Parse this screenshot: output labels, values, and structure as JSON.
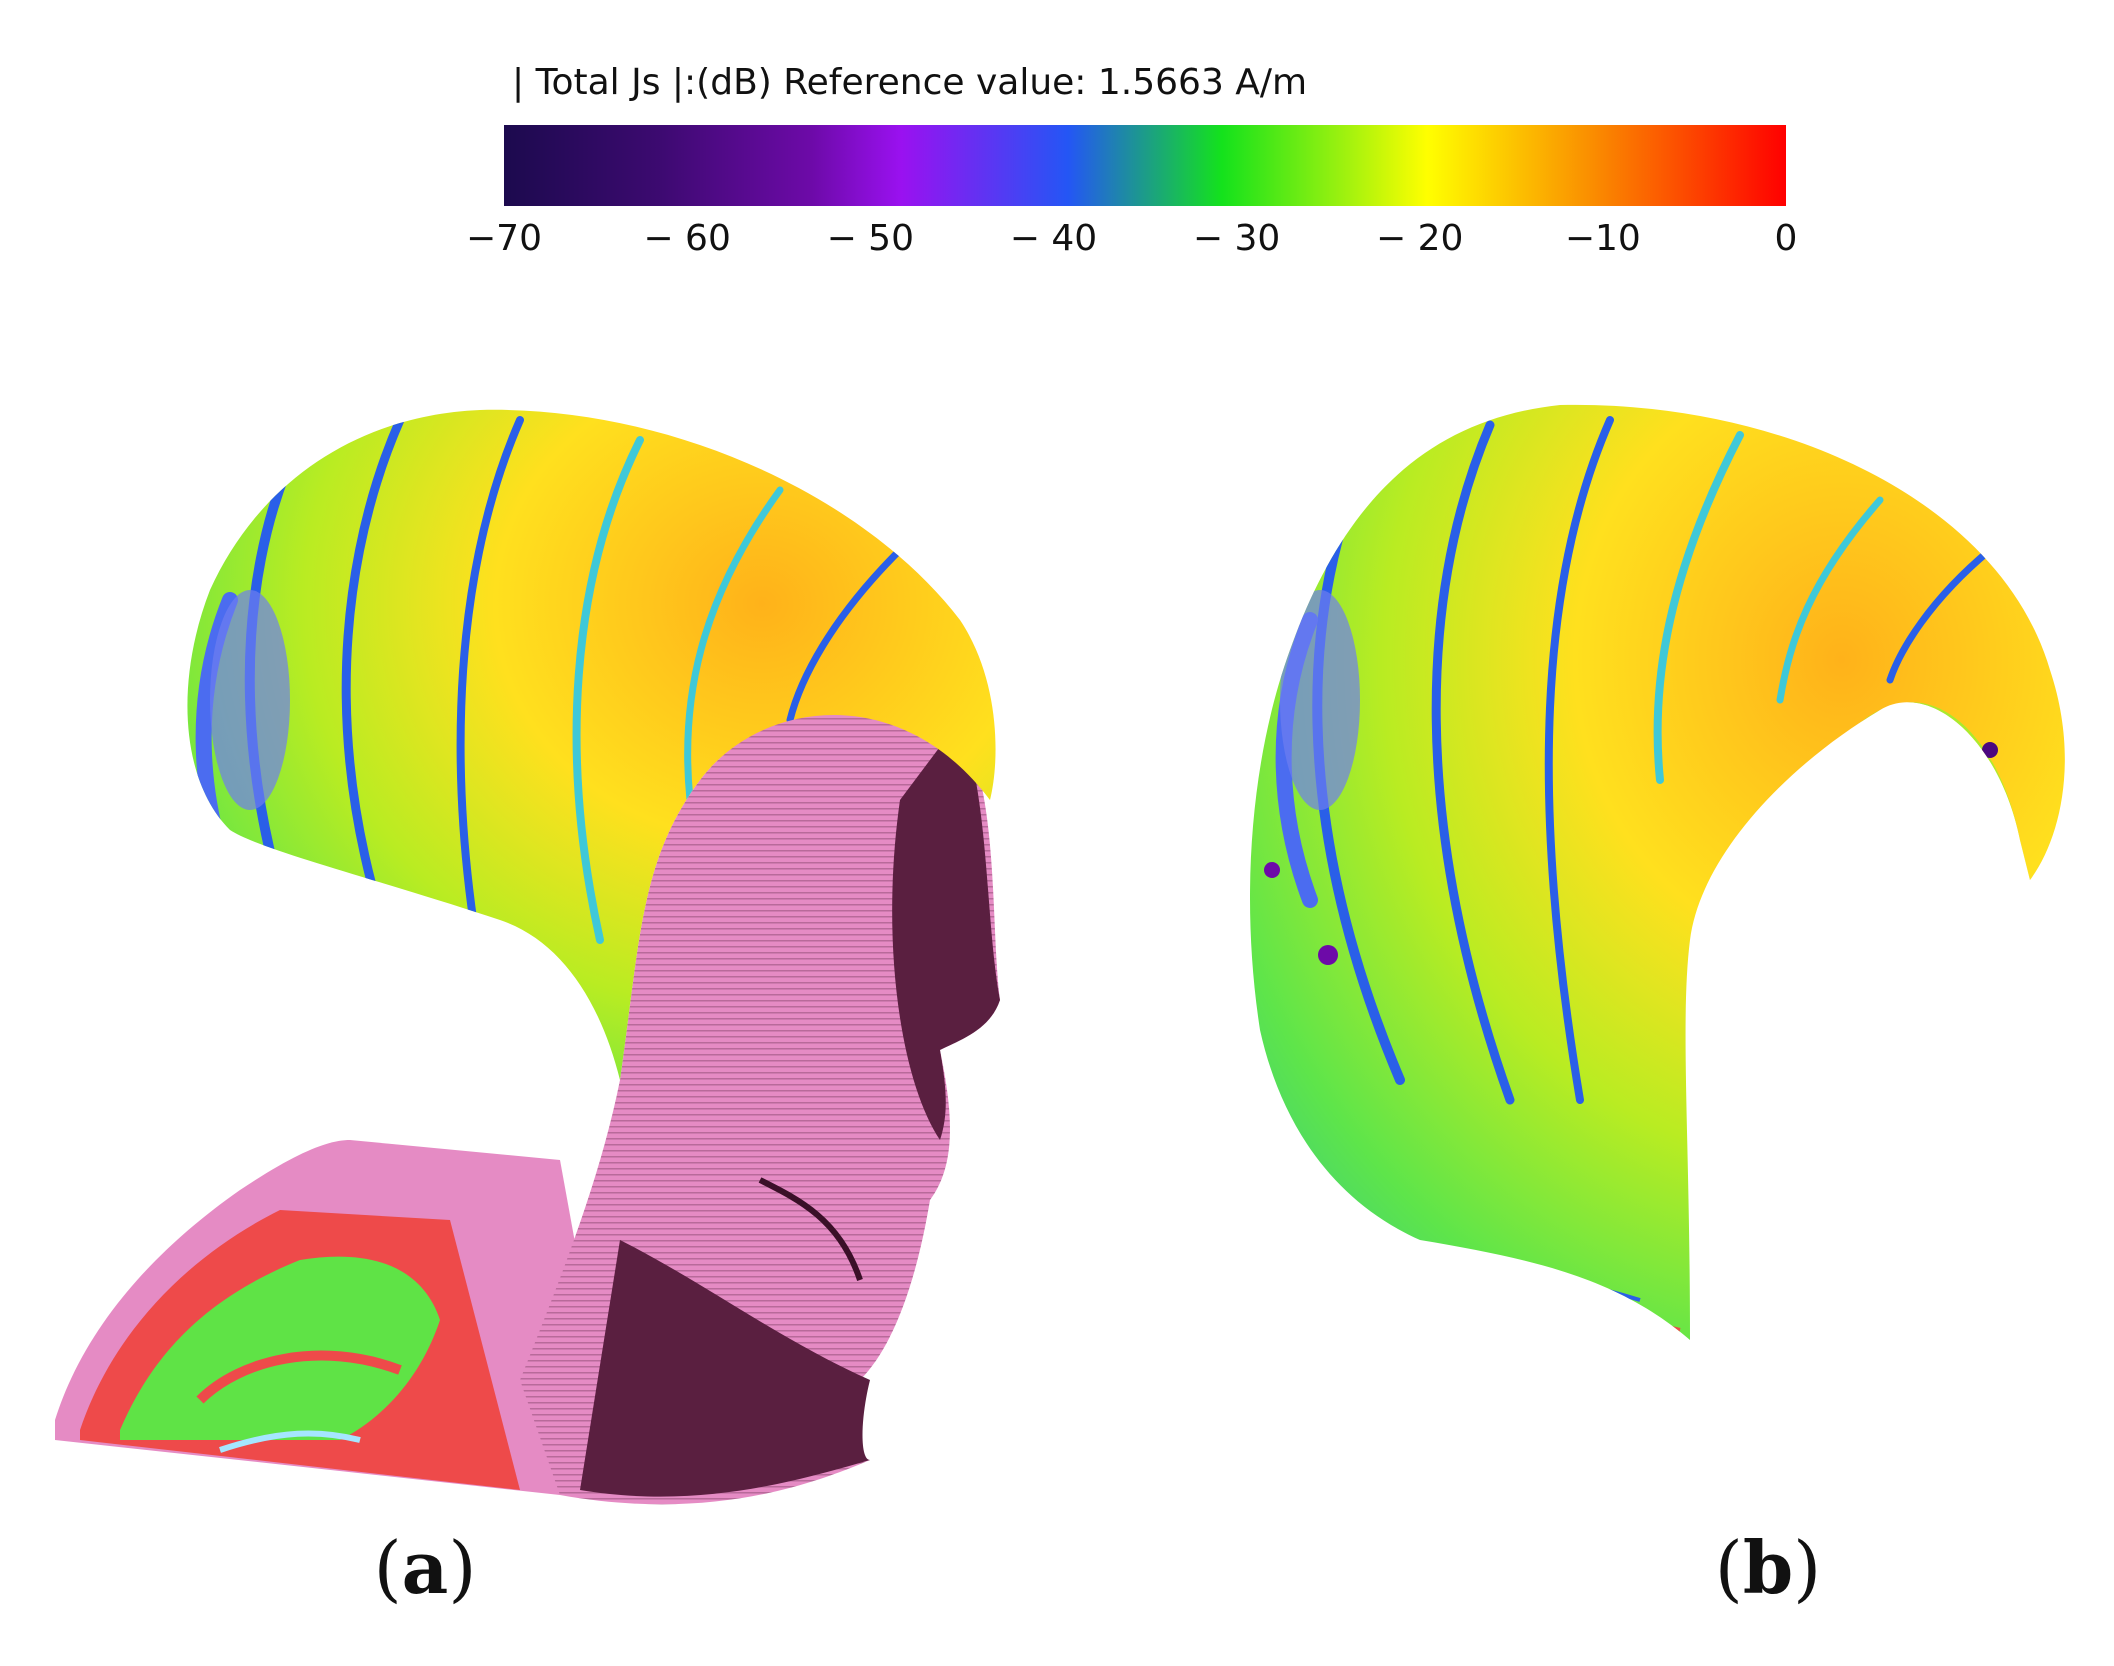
{
  "colorbar": {
    "title": "| Total Js |:(dB) Reference value: 1.5663 A/m",
    "min": -70,
    "max": 0,
    "ticks": [
      "−70",
      "− 60",
      "− 50",
      "− 40",
      "− 30",
      "− 20",
      "−10",
      "0"
    ],
    "tick_values": [
      -70,
      -60,
      -50,
      -40,
      -30,
      -20,
      -10,
      0
    ],
    "colormap": [
      "#1c0a4e",
      "#4b0780",
      "#9a11f0",
      "#2456f5",
      "#14e21c",
      "#ffff00",
      "#fa8c00",
      "#ff0000"
    ]
  },
  "panels": [
    {
      "letter": "a"
    },
    {
      "letter": "b"
    }
  ],
  "colors": {
    "head_skin": "#e58bc4",
    "head_shadow": "#5a1f40",
    "torso_green": "#5fe346",
    "torso_red": "#ee4a4a",
    "helmet_yellow": "#ffd21c",
    "helmet_green": "#8ce82a",
    "stripe_blue": "#2a5fe8"
  }
}
